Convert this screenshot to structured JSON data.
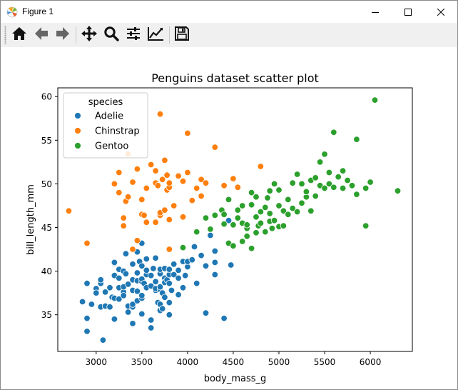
{
  "window": {
    "title": "Figure 1",
    "icons": {
      "app": "matplotlib-icon",
      "minimize": "minimize-icon",
      "maximize": "maximize-icon",
      "close": "close-icon"
    }
  },
  "toolbar": {
    "buttons": [
      {
        "name": "home",
        "icon": "home-icon"
      },
      {
        "name": "back",
        "icon": "arrow-left-icon"
      },
      {
        "name": "forward",
        "icon": "arrow-right-icon"
      },
      {
        "name": "pan",
        "icon": "move-icon"
      },
      {
        "name": "zoom",
        "icon": "magnifier-icon"
      },
      {
        "name": "subplots",
        "icon": "sliders-icon"
      },
      {
        "name": "customize",
        "icon": "line-chart-icon"
      },
      {
        "name": "save",
        "icon": "floppy-disk-icon"
      }
    ]
  },
  "chart_data": {
    "type": "scatter",
    "title": "Penguins dataset scatter plot",
    "xlabel": "body_mass_g",
    "ylabel": "bill_length_mm",
    "xlim": [
      2580,
      6460
    ],
    "ylim": [
      30.8,
      61.0
    ],
    "xticks": [
      3000,
      3500,
      4000,
      4500,
      5000,
      5500,
      6000
    ],
    "yticks": [
      35,
      40,
      45,
      50,
      55,
      60
    ],
    "grid": false,
    "legend": {
      "title": "species",
      "placement": "top-left"
    },
    "series": [
      {
        "name": "Adelie",
        "color": "#1f77b4",
        "points": [
          [
            2850,
            36.5
          ],
          [
            2900,
            38.6
          ],
          [
            2900,
            34.6
          ],
          [
            2900,
            33.1
          ],
          [
            2950,
            36.2
          ],
          [
            3000,
            38.0
          ],
          [
            3000,
            37.5
          ],
          [
            3050,
            38.6
          ],
          [
            3050,
            35.9
          ],
          [
            3050,
            39.0
          ],
          [
            3075,
            32.1
          ],
          [
            3100,
            36.0
          ],
          [
            3100,
            37.6
          ],
          [
            3150,
            35.9
          ],
          [
            3150,
            38.1
          ],
          [
            3175,
            37.0
          ],
          [
            3200,
            34.5
          ],
          [
            3200,
            36.9
          ],
          [
            3200,
            39.5
          ],
          [
            3200,
            40.9
          ],
          [
            3200,
            41.0
          ],
          [
            3250,
            40.2
          ],
          [
            3250,
            39.2
          ],
          [
            3250,
            38.1
          ],
          [
            3250,
            36.8
          ],
          [
            3300,
            37.6
          ],
          [
            3300,
            40.0
          ],
          [
            3300,
            38.2
          ],
          [
            3300,
            37.2
          ],
          [
            3325,
            39.7
          ],
          [
            3325,
            42.0
          ],
          [
            3350,
            38.5
          ],
          [
            3350,
            36.0
          ],
          [
            3350,
            35.3
          ],
          [
            3400,
            37.8
          ],
          [
            3400,
            39.0
          ],
          [
            3400,
            34.0
          ],
          [
            3400,
            40.8
          ],
          [
            3400,
            35.9
          ],
          [
            3400,
            36.2
          ],
          [
            3450,
            38.9
          ],
          [
            3450,
            42.2
          ],
          [
            3450,
            37.7
          ],
          [
            3450,
            36.6
          ],
          [
            3450,
            39.8
          ],
          [
            3475,
            41.1
          ],
          [
            3500,
            36.9
          ],
          [
            3500,
            38.8
          ],
          [
            3500,
            39.1
          ],
          [
            3500,
            37.2
          ],
          [
            3500,
            43.2
          ],
          [
            3500,
            40.6
          ],
          [
            3500,
            35.1
          ],
          [
            3525,
            38.6
          ],
          [
            3550,
            41.4
          ],
          [
            3550,
            38.1
          ],
          [
            3550,
            39.6
          ],
          [
            3550,
            40.1
          ],
          [
            3600,
            34.4
          ],
          [
            3600,
            39.5
          ],
          [
            3600,
            33.5
          ],
          [
            3600,
            38.3
          ],
          [
            3625,
            40.3
          ],
          [
            3650,
            38.8
          ],
          [
            3650,
            41.5
          ],
          [
            3650,
            37.8
          ],
          [
            3650,
            38.0
          ],
          [
            3675,
            36.4
          ],
          [
            3700,
            37.9
          ],
          [
            3700,
            39.7
          ],
          [
            3700,
            36.2
          ],
          [
            3700,
            35.5
          ],
          [
            3700,
            40.2
          ],
          [
            3700,
            38.2
          ],
          [
            3725,
            37.5
          ],
          [
            3725,
            35.7
          ],
          [
            3750,
            40.3
          ],
          [
            3750,
            39.2
          ],
          [
            3750,
            38.7
          ],
          [
            3750,
            37.0
          ],
          [
            3775,
            39.0
          ],
          [
            3800,
            39.6
          ],
          [
            3800,
            36.4
          ],
          [
            3800,
            40.2
          ],
          [
            3800,
            35.0
          ],
          [
            3800,
            38.6
          ],
          [
            3825,
            37.8
          ],
          [
            3850,
            40.8
          ],
          [
            3850,
            39.6
          ],
          [
            3900,
            37.3
          ],
          [
            3900,
            40.1
          ],
          [
            3900,
            39.2
          ],
          [
            3950,
            41.1
          ],
          [
            3950,
            38.1
          ],
          [
            3975,
            39.5
          ],
          [
            4000,
            40.5
          ],
          [
            4000,
            41.1
          ],
          [
            4050,
            41.3
          ],
          [
            4075,
            42.8
          ],
          [
            4100,
            38.6
          ],
          [
            4150,
            41.8
          ],
          [
            4200,
            40.6
          ],
          [
            4200,
            35.2
          ],
          [
            4250,
            44.1
          ],
          [
            4300,
            42.3
          ],
          [
            4300,
            39.6
          ],
          [
            4300,
            41.0
          ],
          [
            4400,
            34.6
          ],
          [
            4450,
            45.8
          ],
          [
            4475,
            40.7
          ]
        ]
      },
      {
        "name": "Chinstrap",
        "color": "#ff7f0e",
        "points": [
          [
            2700,
            46.9
          ],
          [
            2900,
            43.2
          ],
          [
            3200,
            50.0
          ],
          [
            3250,
            51.3
          ],
          [
            3250,
            49.0
          ],
          [
            3300,
            45.2
          ],
          [
            3300,
            46.1
          ],
          [
            3325,
            48.0
          ],
          [
            3350,
            53.4
          ],
          [
            3350,
            48.5
          ],
          [
            3400,
            42.5
          ],
          [
            3400,
            50.2
          ],
          [
            3450,
            43.5
          ],
          [
            3450,
            51.7
          ],
          [
            3500,
            46.5
          ],
          [
            3500,
            48.2
          ],
          [
            3525,
            46.4
          ],
          [
            3550,
            45.6
          ],
          [
            3550,
            49.5
          ],
          [
            3600,
            52.2
          ],
          [
            3650,
            45.6
          ],
          [
            3650,
            51.5
          ],
          [
            3650,
            50.1
          ],
          [
            3675,
            49.8
          ],
          [
            3700,
            46.4
          ],
          [
            3700,
            58.0
          ],
          [
            3700,
            46.7
          ],
          [
            3725,
            50.5
          ],
          [
            3750,
            52.7
          ],
          [
            3750,
            47.0
          ],
          [
            3775,
            51.0
          ],
          [
            3775,
            49.3
          ],
          [
            3800,
            49.6
          ],
          [
            3800,
            45.9
          ],
          [
            3800,
            50.1
          ],
          [
            3800,
            42.5
          ],
          [
            3850,
            47.5
          ],
          [
            3900,
            50.9
          ],
          [
            3950,
            50.3
          ],
          [
            3950,
            46.2
          ],
          [
            4000,
            51.3
          ],
          [
            4000,
            55.8
          ],
          [
            4050,
            48.1
          ],
          [
            4100,
            49.5
          ],
          [
            4150,
            50.5
          ],
          [
            4150,
            48.6
          ],
          [
            4200,
            50.1
          ],
          [
            4300,
            54.2
          ],
          [
            4400,
            49.8
          ],
          [
            4500,
            50.6
          ],
          [
            4550,
            49.6
          ],
          [
            4800,
            52.0
          ]
        ]
      },
      {
        "name": "Gentoo",
        "color": "#2ca02c",
        "points": [
          [
            3950,
            42.7
          ],
          [
            4100,
            44.5
          ],
          [
            4200,
            46.1
          ],
          [
            4250,
            44.8
          ],
          [
            4300,
            46.4
          ],
          [
            4375,
            47.0
          ],
          [
            4400,
            45.4
          ],
          [
            4400,
            46.5
          ],
          [
            4450,
            43.2
          ],
          [
            4450,
            48.2
          ],
          [
            4500,
            45.3
          ],
          [
            4500,
            42.9
          ],
          [
            4550,
            46.1
          ],
          [
            4550,
            47.0
          ],
          [
            4600,
            43.4
          ],
          [
            4600,
            47.5
          ],
          [
            4600,
            45.5
          ],
          [
            4650,
            44.9
          ],
          [
            4650,
            45.3
          ],
          [
            4650,
            44.0
          ],
          [
            4700,
            47.6
          ],
          [
            4700,
            49.0
          ],
          [
            4700,
            42.6
          ],
          [
            4750,
            44.4
          ],
          [
            4750,
            46.2
          ],
          [
            4750,
            48.5
          ],
          [
            4775,
            45.2
          ],
          [
            4800,
            46.8
          ],
          [
            4800,
            45.5
          ],
          [
            4850,
            44.5
          ],
          [
            4850,
            47.3
          ],
          [
            4875,
            48.4
          ],
          [
            4900,
            46.6
          ],
          [
            4900,
            45.7
          ],
          [
            4900,
            49.2
          ],
          [
            4925,
            44.9
          ],
          [
            4950,
            45.8
          ],
          [
            4950,
            50.0
          ],
          [
            5000,
            45.1
          ],
          [
            5000,
            47.5
          ],
          [
            5000,
            49.3
          ],
          [
            5050,
            46.9
          ],
          [
            5050,
            45.2
          ],
          [
            5100,
            46.5
          ],
          [
            5100,
            48.2
          ],
          [
            5150,
            47.2
          ],
          [
            5150,
            50.1
          ],
          [
            5200,
            46.8
          ],
          [
            5200,
            51.1
          ],
          [
            5250,
            47.8
          ],
          [
            5250,
            50.0
          ],
          [
            5300,
            48.5
          ],
          [
            5300,
            49.1
          ],
          [
            5350,
            50.4
          ],
          [
            5350,
            46.9
          ],
          [
            5400,
            50.7
          ],
          [
            5400,
            48.6
          ],
          [
            5450,
            49.8
          ],
          [
            5450,
            52.5
          ],
          [
            5500,
            49.5
          ],
          [
            5500,
            53.4
          ],
          [
            5550,
            50.0
          ],
          [
            5550,
            51.3
          ],
          [
            5600,
            49.6
          ],
          [
            5600,
            55.9
          ],
          [
            5650,
            50.8
          ],
          [
            5700,
            49.5
          ],
          [
            5700,
            51.5
          ],
          [
            5750,
            50.4
          ],
          [
            5800,
            49.8
          ],
          [
            5850,
            55.1
          ],
          [
            5850,
            48.8
          ],
          [
            5950,
            45.2
          ],
          [
            5950,
            49.5
          ],
          [
            6000,
            50.2
          ],
          [
            6050,
            59.6
          ],
          [
            6300,
            49.2
          ]
        ]
      }
    ]
  }
}
